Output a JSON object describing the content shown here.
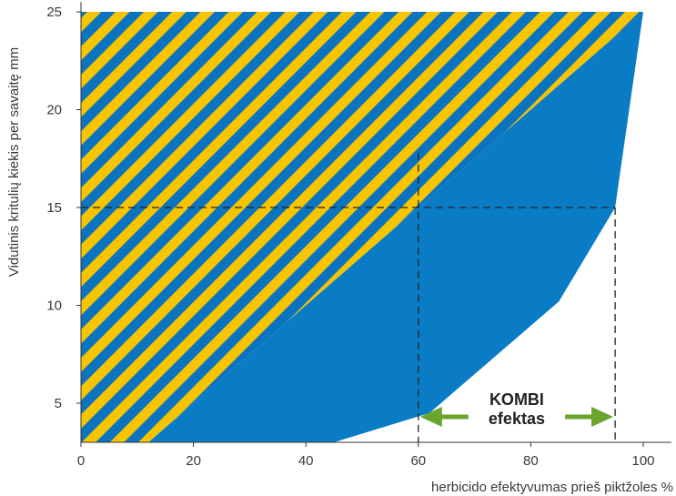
{
  "chart_data": {
    "type": "area",
    "title": "",
    "xlabel": "herbicido efektyvumas prieš piktžoles %",
    "ylabel": "Vidutinis kritulių kiekis per savaitę mm",
    "xlim": [
      0,
      105
    ],
    "ylim": [
      3,
      25.5
    ],
    "x_ticks": [
      0,
      20,
      40,
      60,
      80,
      100
    ],
    "y_ticks": [
      5,
      10,
      15,
      20,
      25
    ],
    "grid": false,
    "series": [
      {
        "fill": "striped",
        "colors": [
          "#f7c400",
          "#0a74c0"
        ],
        "boundary": [
          [
            0,
            3
          ],
          [
            0,
            25
          ],
          [
            100,
            25
          ],
          [
            60,
            15
          ],
          [
            12,
            3
          ]
        ]
      },
      {
        "fill": "solid",
        "colors": [
          "#0a7cc5"
        ],
        "boundary": [
          [
            12,
            3
          ],
          [
            60,
            15
          ],
          [
            100,
            25
          ],
          [
            95,
            15
          ],
          [
            85,
            10.2
          ],
          [
            62,
            4.5
          ],
          [
            45,
            3
          ]
        ]
      }
    ],
    "reference_lines": [
      {
        "style": "dashed",
        "points": [
          [
            60,
            17.8
          ],
          [
            60,
            3
          ]
        ]
      },
      {
        "style": "dashed",
        "points": [
          [
            0,
            15
          ],
          [
            95,
            15
          ]
        ]
      },
      {
        "style": "dashed",
        "points": [
          [
            95,
            15
          ],
          [
            95,
            3
          ]
        ]
      }
    ],
    "annotation": {
      "lines": [
        "KOMBI",
        "efektas"
      ],
      "arrow_from": 60,
      "arrow_to": 95,
      "arrow_y": 4.3,
      "arrow_color": "#6aa52e"
    }
  }
}
